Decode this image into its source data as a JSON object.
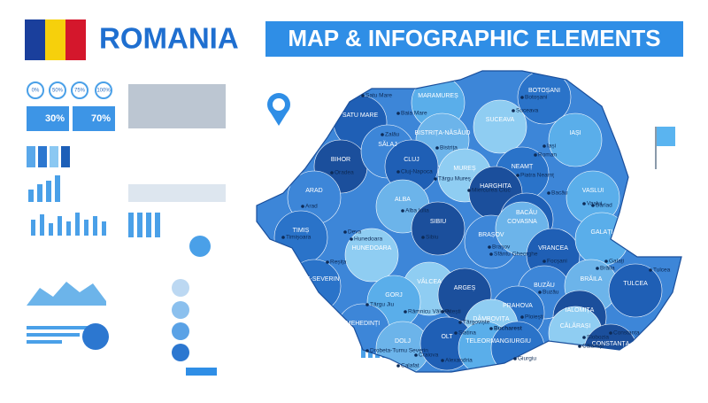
{
  "header": {
    "title": "ROMANIA",
    "subtitle": "MAP & INFOGRAPHIC ELEMENTS"
  },
  "map": {
    "counties": [
      "SATU MARE",
      "MARAMUREȘ",
      "BOTOȘANI",
      "SUCEAVA",
      "BIHOR",
      "SĂLAJ",
      "BISTRIȚA-NĂSĂUD",
      "CLUJ",
      "IAȘI",
      "NEAMȚ",
      "MUREȘ",
      "HARGHITA",
      "ARAD",
      "ALBA",
      "BACĂU",
      "VASLUI",
      "TIMIȘ",
      "HUNEDOARA",
      "SIBIU",
      "BRAȘOV",
      "COVASNA",
      "VRANCEA",
      "GALAȚI",
      "CARAȘ-SEVERIN",
      "VÂLCEA",
      "ARGEȘ",
      "BUZĂU",
      "BRĂILA",
      "TULCEA",
      "GORJ",
      "PRAHOVA",
      "DÂMBOVIȚA",
      "IALOMIȚA",
      "MEHEDINȚI",
      "DOLJ",
      "OLT",
      "TELEORMAN",
      "GIURGIU",
      "CĂLĂRAȘI",
      "CONSTANȚA"
    ],
    "cities": [
      "Satu Mare",
      "Baia Mare",
      "Botoșani",
      "Suceava",
      "Oradea",
      "Zalău",
      "Bistrița",
      "Iași",
      "Piatra Neamț",
      "Roman",
      "Cluj-Napoca",
      "Târgu Mureș",
      "Miercurea Ciuc",
      "Arad",
      "Alba Iulia",
      "Bacău",
      "Vaslui",
      "Bârlad",
      "Timișoara",
      "Deva",
      "Hunedoara",
      "Sibiu",
      "Brașov",
      "Sfântu Gheorghe",
      "Focșani",
      "Galați",
      "Brăila",
      "Reșița",
      "Târgu Jiu",
      "Râmnicu Vâlcea",
      "Pitești",
      "Ploiești",
      "Buzău",
      "Tulcea",
      "Drobeta-Turnu Severin",
      "Târgoviște",
      "Slobozia",
      "Craiova",
      "Slatina",
      "Bucharest",
      "Alexandria",
      "Giurgiu",
      "Călărași",
      "Constanța",
      "Calafat"
    ]
  },
  "infographic": {
    "circle_labels": [
      "0%",
      "50%",
      "75%",
      "100%"
    ],
    "gender_labels": [
      "30%",
      "70%"
    ]
  }
}
